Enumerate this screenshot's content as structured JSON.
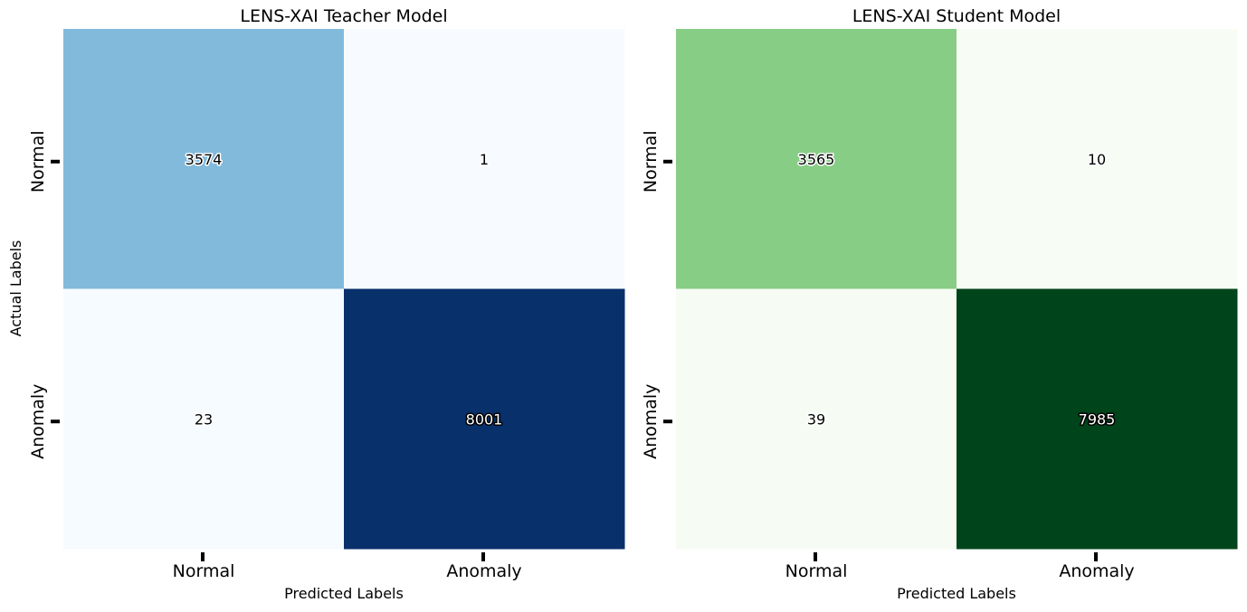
{
  "chart_data": [
    {
      "type": "heatmap",
      "title": "LENS-XAI Teacher Model",
      "xlabel": "Predicted Labels",
      "ylabel": "Actual Labels",
      "x_categories": [
        "Normal",
        "Anomaly"
      ],
      "y_categories": [
        "Normal",
        "Anomaly"
      ],
      "values": [
        [
          3574,
          1
        ],
        [
          23,
          8001
        ]
      ],
      "colormap": "Blues",
      "colors": {
        "low": "#f7fbff",
        "high": "#08306b"
      },
      "colorbar": false
    },
    {
      "type": "heatmap",
      "title": "LENS-XAI Student Model",
      "xlabel": "Predicted Labels",
      "ylabel": "",
      "x_categories": [
        "Normal",
        "Anomaly"
      ],
      "y_categories": [
        "Normal",
        "Anomaly"
      ],
      "values": [
        [
          3565,
          10
        ],
        [
          39,
          7985
        ]
      ],
      "colormap": "Greens",
      "colors": {
        "low": "#f7fcf5",
        "high": "#00441b"
      },
      "colorbar": false
    }
  ]
}
